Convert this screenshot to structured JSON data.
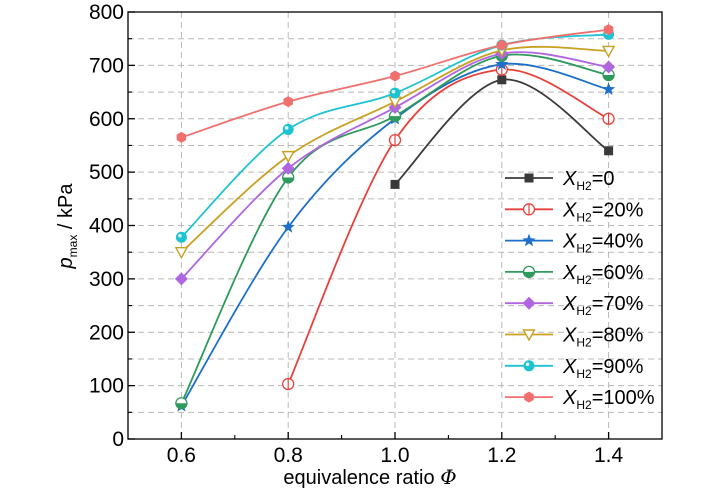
{
  "chart_data": {
    "type": "line",
    "title": "",
    "xlabel_main": "equivalence ratio ",
    "xlabel_symbol": "Φ",
    "ylabel_main": "p",
    "ylabel_sub": "max",
    "ylabel_unit": " / kPa",
    "xlim": [
      0.5,
      1.5
    ],
    "ylim": [
      0,
      800
    ],
    "x_ticks": [
      0.6,
      0.8,
      1.0,
      1.2,
      1.4
    ],
    "x_tick_labels": [
      "0.6",
      "0.8",
      "1.0",
      "1.2",
      "1.4"
    ],
    "y_ticks": [
      0,
      100,
      200,
      300,
      400,
      500,
      600,
      700,
      800
    ],
    "y_tick_labels": [
      "0",
      "100",
      "200",
      "300",
      "400",
      "500",
      "600",
      "700",
      "800"
    ],
    "grid": true,
    "legend_position": "bottom-right",
    "legend_prefix": "X",
    "legend_sub": "H2",
    "series": [
      {
        "name": "=0",
        "color": "#3a3a3a",
        "marker": "square",
        "x": [
          1.0,
          1.2,
          1.4
        ],
        "values": [
          477,
          673,
          540
        ]
      },
      {
        "name": "=20%",
        "color": "#e8413c",
        "marker": "circle-half-open",
        "x": [
          0.8,
          1.0,
          1.2,
          1.4
        ],
        "values": [
          103,
          560,
          692,
          600
        ]
      },
      {
        "name": "=40%",
        "color": "#1d6fc9",
        "marker": "star",
        "x": [
          0.6,
          0.8,
          1.0,
          1.2,
          1.4
        ],
        "values": [
          62,
          397,
          600,
          702,
          655
        ]
      },
      {
        "name": "=60%",
        "color": "#2e9a5c",
        "marker": "circle-half",
        "x": [
          0.6,
          0.8,
          1.0,
          1.2,
          1.4
        ],
        "values": [
          67,
          490,
          605,
          718,
          682
        ]
      },
      {
        "name": "=70%",
        "color": "#b066e0",
        "marker": "diamond",
        "x": [
          0.6,
          0.8,
          1.0,
          1.2,
          1.4
        ],
        "values": [
          300,
          507,
          621,
          722,
          697
        ]
      },
      {
        "name": "=80%",
        "color": "#c9a020",
        "marker": "triangle-down",
        "x": [
          0.6,
          0.8,
          1.0,
          1.2,
          1.4
        ],
        "values": [
          350,
          530,
          632,
          728,
          727
        ]
      },
      {
        "name": "=90%",
        "color": "#1ec3d2",
        "marker": "circle-cyan",
        "x": [
          0.6,
          0.8,
          1.0,
          1.2,
          1.4
        ],
        "values": [
          378,
          580,
          648,
          738,
          758
        ]
      },
      {
        "name": "=100%",
        "color": "#f0706f",
        "marker": "hexagon",
        "x": [
          0.6,
          0.8,
          1.0,
          1.2,
          1.4
        ],
        "values": [
          565,
          632,
          680,
          738,
          767
        ]
      }
    ]
  }
}
